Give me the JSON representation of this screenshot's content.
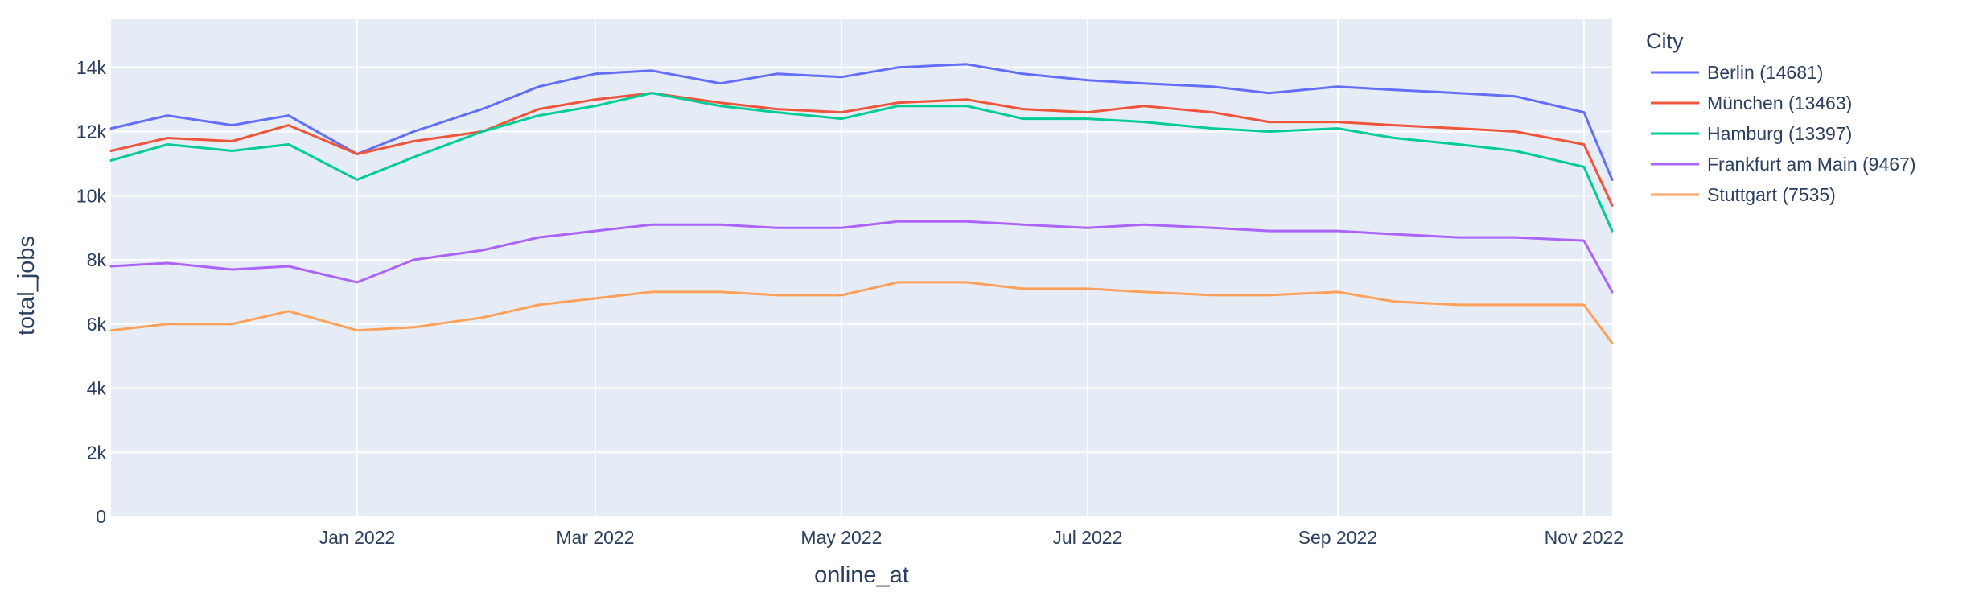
{
  "chart_data": {
    "type": "line",
    "title": "",
    "xlabel": "online_at",
    "ylabel": "total_jobs",
    "legend_title": "City",
    "legend_position": "right",
    "grid": true,
    "x_range": [
      "2021-11-01",
      "2022-11-08"
    ],
    "ylim": [
      0,
      15500
    ],
    "x_ticks": [
      {
        "date": "2022-01-01",
        "label": "Jan 2022"
      },
      {
        "date": "2022-03-01",
        "label": "Mar 2022"
      },
      {
        "date": "2022-05-01",
        "label": "May 2022"
      },
      {
        "date": "2022-07-01",
        "label": "Jul 2022"
      },
      {
        "date": "2022-09-01",
        "label": "Sep 2022"
      },
      {
        "date": "2022-11-01",
        "label": "Nov 2022"
      }
    ],
    "y_ticks": [
      {
        "value": 0,
        "label": "0"
      },
      {
        "value": 2000,
        "label": "2k"
      },
      {
        "value": 4000,
        "label": "4k"
      },
      {
        "value": 6000,
        "label": "6k"
      },
      {
        "value": 8000,
        "label": "8k"
      },
      {
        "value": 10000,
        "label": "10k"
      },
      {
        "value": 12000,
        "label": "12k"
      },
      {
        "value": 14000,
        "label": "14k"
      }
    ],
    "x": [
      "2021-11-01",
      "2021-11-15",
      "2021-12-01",
      "2021-12-15",
      "2022-01-01",
      "2022-01-15",
      "2022-02-01",
      "2022-02-15",
      "2022-03-01",
      "2022-03-15",
      "2022-04-01",
      "2022-04-15",
      "2022-05-01",
      "2022-05-15",
      "2022-06-01",
      "2022-06-15",
      "2022-07-01",
      "2022-07-15",
      "2022-08-01",
      "2022-08-15",
      "2022-09-01",
      "2022-09-15",
      "2022-10-01",
      "2022-10-15",
      "2022-11-01",
      "2022-11-08"
    ],
    "series": [
      {
        "name": "Berlin (14681)",
        "color": "#636efa",
        "values": [
          12100,
          12500,
          12200,
          12500,
          11300,
          12000,
          12700,
          13400,
          13800,
          13900,
          13500,
          13800,
          13700,
          14000,
          14100,
          13800,
          13600,
          13500,
          13400,
          13200,
          13400,
          13300,
          13200,
          13100,
          12600,
          10500
        ]
      },
      {
        "name": "München (13463)",
        "color": "#ef553b",
        "values": [
          11400,
          11800,
          11700,
          12200,
          11300,
          11700,
          12000,
          12700,
          13000,
          13200,
          12900,
          12700,
          12600,
          12900,
          13000,
          12700,
          12600,
          12800,
          12600,
          12300,
          12300,
          12200,
          12100,
          12000,
          11600,
          9700
        ]
      },
      {
        "name": "Hamburg (13397)",
        "color": "#00cc96",
        "values": [
          11100,
          11600,
          11400,
          11600,
          10500,
          11200,
          12000,
          12500,
          12800,
          13200,
          12800,
          12600,
          12400,
          12800,
          12800,
          12400,
          12400,
          12300,
          12100,
          12000,
          12100,
          11800,
          11600,
          11400,
          10900,
          8900
        ]
      },
      {
        "name": "Frankfurt am Main (9467)",
        "color": "#ab63fa",
        "values": [
          7800,
          7900,
          7700,
          7800,
          7300,
          8000,
          8300,
          8700,
          8900,
          9100,
          9100,
          9000,
          9000,
          9200,
          9200,
          9100,
          9000,
          9100,
          9000,
          8900,
          8900,
          8800,
          8700,
          8700,
          8600,
          7000
        ]
      },
      {
        "name": "Stuttgart (7535)",
        "color": "#ffa15a",
        "values": [
          5800,
          6000,
          6000,
          6400,
          5800,
          5900,
          6200,
          6600,
          6800,
          7000,
          7000,
          6900,
          6900,
          7300,
          7300,
          7100,
          7100,
          7000,
          6900,
          6900,
          7000,
          6700,
          6600,
          6600,
          6600,
          5400
        ]
      }
    ]
  }
}
